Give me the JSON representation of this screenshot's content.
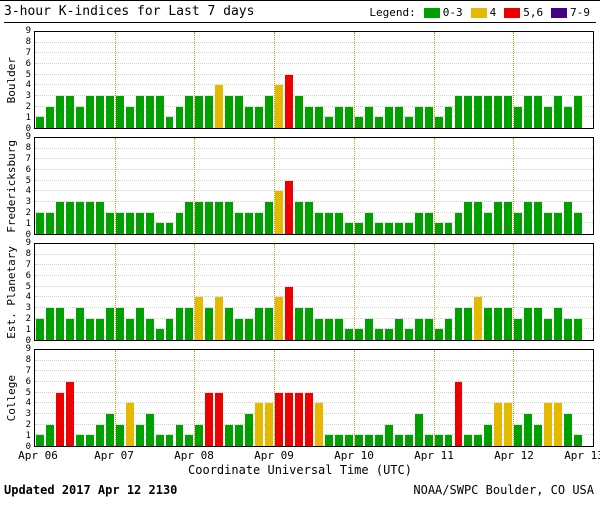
{
  "header": {
    "title": "3-hour K-indices for Last 7 days",
    "legend_label": "Legend:"
  },
  "footer": {
    "updated_label": "Updated",
    "updated_value": "2017 Apr 12 2130",
    "credit": "NOAA/SWPC Boulder, CO USA"
  },
  "chart_data": {
    "type": "bar",
    "title": "3-hour K-indices for Last 7 days",
    "xlabel": "Coordinate Universal Time (UTC)",
    "ylim": [
      0,
      9
    ],
    "y_ticks": [
      0,
      1,
      2,
      3,
      4,
      5,
      6,
      7,
      8,
      9
    ],
    "days": 7,
    "bars_per_day": 8,
    "x_tick_labels": [
      "Apr 06",
      "Apr 07",
      "Apr 08",
      "Apr 09",
      "Apr 10",
      "Apr 11",
      "Apr 12",
      "Apr 13"
    ],
    "legend": [
      {
        "label": "0-3",
        "color": "#00a000",
        "range": [
          0,
          3
        ]
      },
      {
        "label": "4",
        "color": "#e6b800",
        "range": [
          4,
          4
        ]
      },
      {
        "label": "5,6",
        "color": "#ee0000",
        "range": [
          5,
          6
        ]
      },
      {
        "label": "7-9",
        "color": "#440088",
        "range": [
          7,
          9
        ]
      }
    ],
    "grid": {
      "horizontal": "dotted",
      "vertical_day_lines": "dotted"
    },
    "panels": [
      {
        "station": "Boulder",
        "values": [
          1,
          2,
          3,
          3,
          2,
          3,
          3,
          3,
          3,
          2,
          3,
          3,
          3,
          1,
          2,
          3,
          3,
          3,
          4,
          3,
          3,
          2,
          2,
          3,
          4,
          5,
          3,
          2,
          2,
          1,
          2,
          2,
          1,
          2,
          1,
          2,
          2,
          1,
          2,
          2,
          1,
          2,
          3,
          3,
          3,
          3,
          3,
          3,
          2,
          3,
          3,
          2,
          3,
          2,
          3
        ]
      },
      {
        "station": "Fredericksburg",
        "values": [
          2,
          2,
          3,
          3,
          3,
          3,
          3,
          2,
          2,
          2,
          2,
          2,
          1,
          1,
          2,
          3,
          3,
          3,
          3,
          3,
          2,
          2,
          2,
          3,
          4,
          5,
          3,
          3,
          2,
          2,
          2,
          1,
          1,
          2,
          1,
          1,
          1,
          1,
          2,
          2,
          1,
          1,
          2,
          3,
          3,
          2,
          3,
          3,
          2,
          3,
          3,
          2,
          2,
          3,
          2
        ]
      },
      {
        "station": "Est. Planetary",
        "values": [
          2,
          3,
          3,
          2,
          3,
          2,
          2,
          3,
          3,
          2,
          3,
          2,
          1,
          2,
          3,
          3,
          4,
          3,
          4,
          3,
          2,
          2,
          3,
          3,
          4,
          5,
          3,
          3,
          2,
          2,
          2,
          1,
          1,
          2,
          1,
          1,
          2,
          1,
          2,
          2,
          1,
          2,
          3,
          3,
          4,
          3,
          3,
          3,
          2,
          3,
          3,
          2,
          3,
          2,
          2
        ]
      },
      {
        "station": "College",
        "values": [
          1,
          2,
          5,
          6,
          1,
          1,
          2,
          3,
          2,
          4,
          2,
          3,
          1,
          1,
          2,
          1,
          2,
          5,
          5,
          2,
          2,
          3,
          4,
          4,
          5,
          5,
          5,
          5,
          4,
          1,
          1,
          1,
          1,
          1,
          1,
          2,
          1,
          1,
          3,
          1,
          1,
          1,
          6,
          1,
          1,
          2,
          4,
          4,
          2,
          3,
          2,
          4,
          4,
          3,
          1
        ]
      }
    ]
  }
}
